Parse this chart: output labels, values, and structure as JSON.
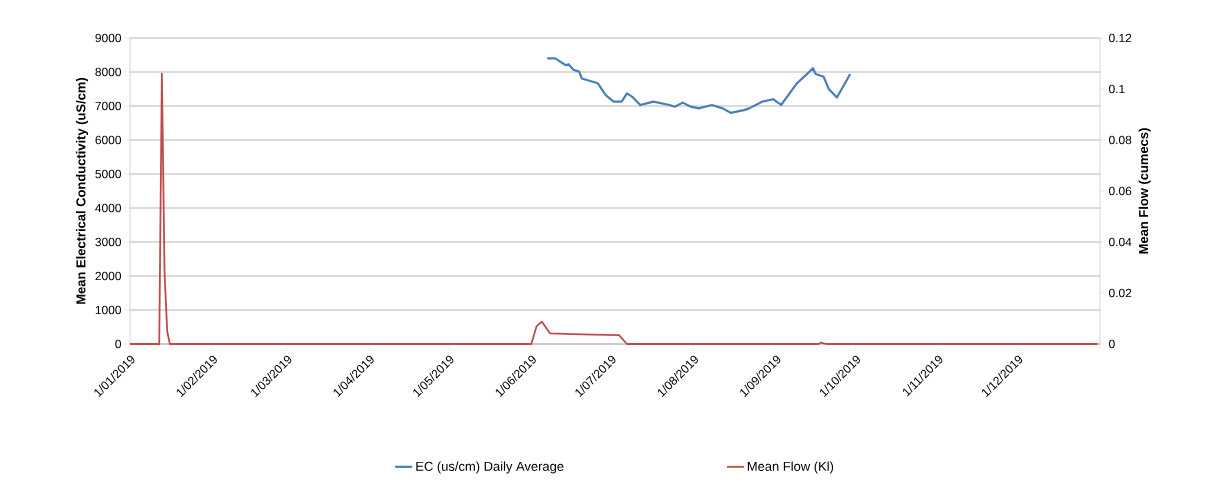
{
  "chart_data": {
    "type": "line",
    "ylabel": "Mean Electrical Conductivity (uS/cm)",
    "y2label": "Mean Flow (cumecs)",
    "xlim": [
      "2019-01-01",
      "2020-01-01"
    ],
    "xticks": [
      {
        "value": "2019-01-01",
        "label": "1/01/2019"
      },
      {
        "value": "2019-02-01",
        "label": "1/02/2019"
      },
      {
        "value": "2019-03-01",
        "label": "1/03/2019"
      },
      {
        "value": "2019-04-01",
        "label": "1/04/2019"
      },
      {
        "value": "2019-05-01",
        "label": "1/05/2019"
      },
      {
        "value": "2019-06-01",
        "label": "1/06/2019"
      },
      {
        "value": "2019-07-01",
        "label": "1/07/2019"
      },
      {
        "value": "2019-08-01",
        "label": "1/08/2019"
      },
      {
        "value": "2019-09-01",
        "label": "1/09/2019"
      },
      {
        "value": "2019-10-01",
        "label": "1/10/2019"
      },
      {
        "value": "2019-11-01",
        "label": "1/11/2019"
      },
      {
        "value": "2019-12-01",
        "label": "1/12/2019"
      },
      {
        "value": "2020-01-01",
        "label": null
      }
    ],
    "ylim": [
      0,
      9000
    ],
    "yticks": [
      0,
      1000,
      2000,
      3000,
      4000,
      5000,
      6000,
      7000,
      8000,
      9000
    ],
    "y2lim": [
      0,
      0.12
    ],
    "y2ticks": [
      0,
      0.02,
      0.04,
      0.06,
      0.08,
      0.1,
      0.12
    ],
    "grid": "y",
    "legend": "bottom",
    "series": [
      {
        "name": "EC (us/cm) Daily Average",
        "color": "#4a7ebb",
        "x": [
          "2019-06-07",
          "2019-06-10",
          "2019-06-14",
          "2019-06-15",
          "2019-06-17",
          "2019-06-19",
          "2019-06-20",
          "2019-06-26",
          "2019-06-29",
          "2019-07-02",
          "2019-07-05",
          "2019-07-07",
          "2019-07-09",
          "2019-07-12",
          "2019-07-17",
          "2019-07-23",
          "2019-07-25",
          "2019-07-28",
          "2019-07-31",
          "2019-08-03",
          "2019-08-08",
          "2019-08-12",
          "2019-08-15",
          "2019-08-20",
          "2019-08-22",
          "2019-08-27",
          "2019-08-31",
          "2019-09-03",
          "2019-09-09",
          "2019-09-13",
          "2019-09-15",
          "2019-09-16",
          "2019-09-19",
          "2019-09-21",
          "2019-09-24",
          "2019-09-29"
        ],
        "values": [
          8400,
          8400,
          8200,
          8230,
          8060,
          8010,
          7810,
          7670,
          7320,
          7130,
          7130,
          7370,
          7270,
          7030,
          7130,
          7030,
          6980,
          7100,
          6980,
          6930,
          7030,
          6930,
          6800,
          6880,
          6930,
          7130,
          7200,
          7030,
          7670,
          7960,
          8110,
          7940,
          7860,
          7490,
          7250,
          7940
        ]
      },
      {
        "name": "Mean Flow (Kl)",
        "color": "#be4b48",
        "axis": "y2",
        "x": [
          "2019-01-01",
          "2019-01-12",
          "2019-01-13",
          "2019-01-14",
          "2019-01-15",
          "2019-01-16",
          "2019-06-01",
          "2019-06-03",
          "2019-06-05",
          "2019-06-08",
          "2019-06-20",
          "2019-07-04",
          "2019-07-07",
          "2019-09-17",
          "2019-09-18",
          "2019-09-20",
          "2019-12-31"
        ],
        "values": [
          0,
          0,
          0.106,
          0.028,
          0.005,
          0,
          0,
          0.007,
          0.0087,
          0.0042,
          0.0038,
          0.0035,
          0,
          0,
          0.0005,
          0,
          0
        ]
      }
    ]
  }
}
